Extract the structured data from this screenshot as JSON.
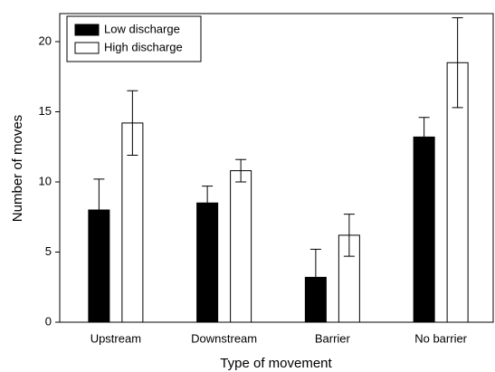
{
  "chart_data": {
    "type": "bar",
    "x_label": "Type of movement",
    "y_label": "Number of moves",
    "categories": [
      "Upstream",
      "Downstream",
      "Barrier",
      "No barrier"
    ],
    "series": [
      {
        "name": "Low discharge",
        "color": "#000000",
        "values": [
          8,
          8.5,
          3.2,
          13.2
        ],
        "errors": [
          2.2,
          1.2,
          2.0,
          1.4
        ]
      },
      {
        "name": "High discharge",
        "color": "#ffffff",
        "values": [
          14.2,
          10.8,
          6.2,
          18.5
        ],
        "errors": [
          2.3,
          0.8,
          1.5,
          3.2
        ]
      }
    ],
    "ylim": [
      0,
      22
    ],
    "yticks": [
      0,
      5,
      10,
      15,
      20
    ],
    "legend": "upper-left"
  }
}
